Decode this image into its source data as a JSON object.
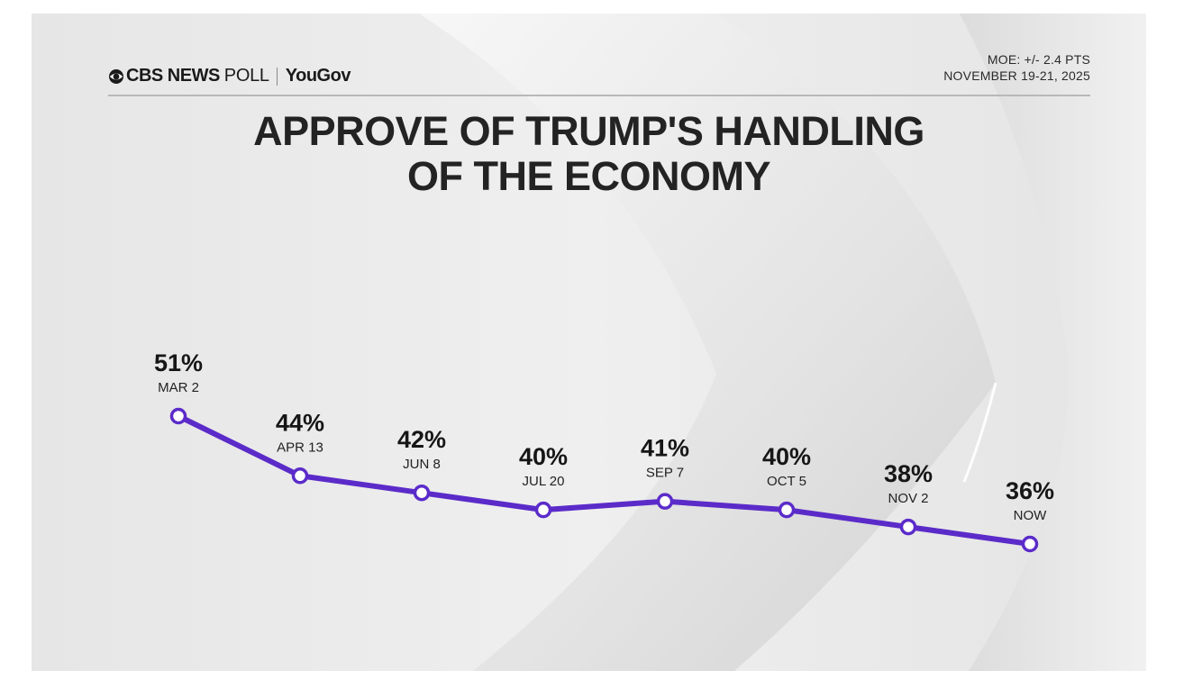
{
  "header": {
    "brand": "CBS NEWS",
    "poll": "POLL",
    "partner": "YouGov",
    "moe": "MOE: +/- 2.4 PTS",
    "dates": "NOVEMBER 19-21, 2025"
  },
  "title_lines": [
    "APPROVE OF TRUMP'S HANDLING",
    "OF THE ECONOMY"
  ],
  "colors": {
    "line": "#5b2bc9",
    "marker_fill": "#ffffff",
    "text": "#1a1a1a"
  },
  "chart_data": {
    "type": "line",
    "title": "APPROVE OF TRUMP'S HANDLING OF THE ECONOMY",
    "xlabel": "",
    "ylabel": "",
    "grid": false,
    "categories": [
      "MAR 2",
      "APR 13",
      "JUN 8",
      "JUL 20",
      "SEP 7",
      "OCT 5",
      "NOV 2",
      "NOW"
    ],
    "values": [
      51,
      44,
      42,
      40,
      41,
      40,
      38,
      36
    ],
    "value_labels": [
      "51%",
      "44%",
      "42%",
      "40%",
      "41%",
      "40%",
      "38%",
      "36%"
    ],
    "unit": "%",
    "ylim": [
      36,
      51
    ]
  }
}
